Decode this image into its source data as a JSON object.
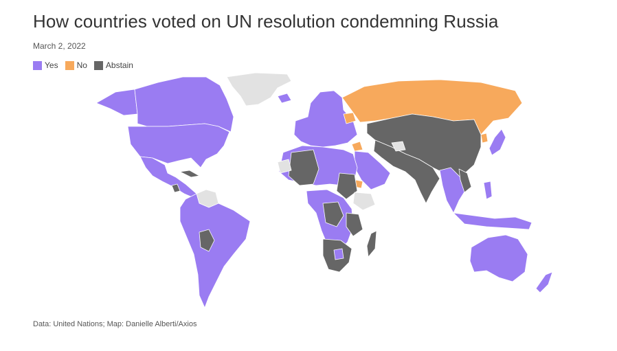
{
  "title": "How countries voted on UN resolution condemning Russia",
  "date": "March 2, 2022",
  "legend": [
    {
      "label": "Yes",
      "color": "#9a7cf2"
    },
    {
      "label": "No",
      "color": "#f7a95c"
    },
    {
      "label": "Abstain",
      "color": "#666666"
    }
  ],
  "colors": {
    "yes": "#9a7cf2",
    "no": "#f7a95c",
    "abstain": "#666666",
    "no_vote": "#e2e2e2",
    "border": "#ffffff"
  },
  "source": "Data: United Nations; Map: Danielle Alberti/Axios"
}
